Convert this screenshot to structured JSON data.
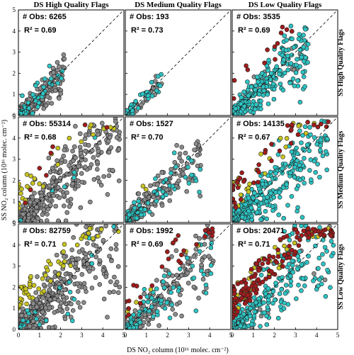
{
  "column_titles": [
    "DS High Quality Flags",
    "DS Medium Quality Flags",
    "DS Low Quality Flags"
  ],
  "row_titles": [
    "SS High Quality Flags",
    "SS Medium Quality Flags",
    "SS Low Quality Flags"
  ],
  "xlabel": "DS NO₂ column (10¹⁶ molec. cm⁻²)",
  "ylabel": "SS NO₂ column (10¹⁶ molec. cm⁻²)",
  "colors": {
    "gray": "#8c8c8c",
    "cyan": "#2ec4c4",
    "yellow": "#c8c420",
    "red": "#a01c1c",
    "edge": "#222222"
  },
  "chart_data": {
    "type": "scatter",
    "layout": "3x3 panel grid",
    "xlim": [
      0,
      5
    ],
    "ylim": [
      0,
      5
    ],
    "xticks": [
      "0",
      "1",
      "2",
      "3",
      "4",
      "5"
    ],
    "yticks": [
      "0",
      "1",
      "2",
      "3",
      "4",
      "5"
    ],
    "one_to_one_line": true,
    "panels": [
      {
        "row": 0,
        "col": 0,
        "n_obs": "# Obs: 6265",
        "r2": "R² = 0.69",
        "points": []
      },
      {
        "row": 0,
        "col": 1,
        "n_obs": "# Obs: 193",
        "r2": "R² = 0.73",
        "points": []
      },
      {
        "row": 0,
        "col": 2,
        "n_obs": "# Obs: 3535",
        "r2": "R² = 0.69",
        "points": []
      },
      {
        "row": 1,
        "col": 0,
        "n_obs": "# Obs: 55314",
        "r2": "R² = 0.68",
        "points": []
      },
      {
        "row": 1,
        "col": 1,
        "n_obs": "# Obs: 1527",
        "r2": "R² = 0.70",
        "points": []
      },
      {
        "row": 1,
        "col": 2,
        "n_obs": "# Obs: 14135",
        "r2": "R² = 0.67",
        "points": []
      },
      {
        "row": 2,
        "col": 0,
        "n_obs": "# Obs: 82759",
        "r2": "R² = 0.71",
        "points": []
      },
      {
        "row": 2,
        "col": 1,
        "n_obs": "# Obs: 1992",
        "r2": "R² = 0.69",
        "points": []
      },
      {
        "row": 2,
        "col": 2,
        "n_obs": "# Obs: 20471",
        "r2": "R² = 0.71",
        "points": []
      }
    ]
  }
}
